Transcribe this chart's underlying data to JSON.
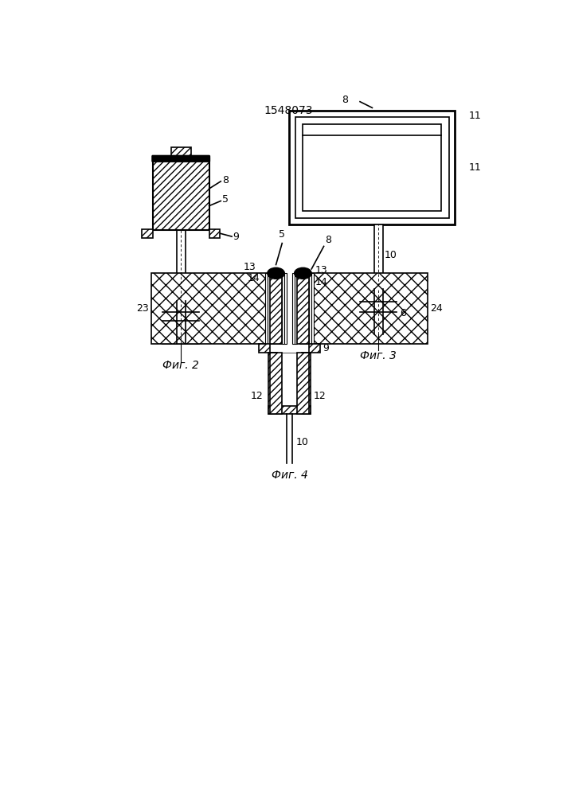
{
  "title": "1548073",
  "background_color": "#ffffff",
  "fig2_label": "Фиг. 2",
  "fig3_label": "Фиг. 3",
  "fig4_label": "Фиг. 4"
}
